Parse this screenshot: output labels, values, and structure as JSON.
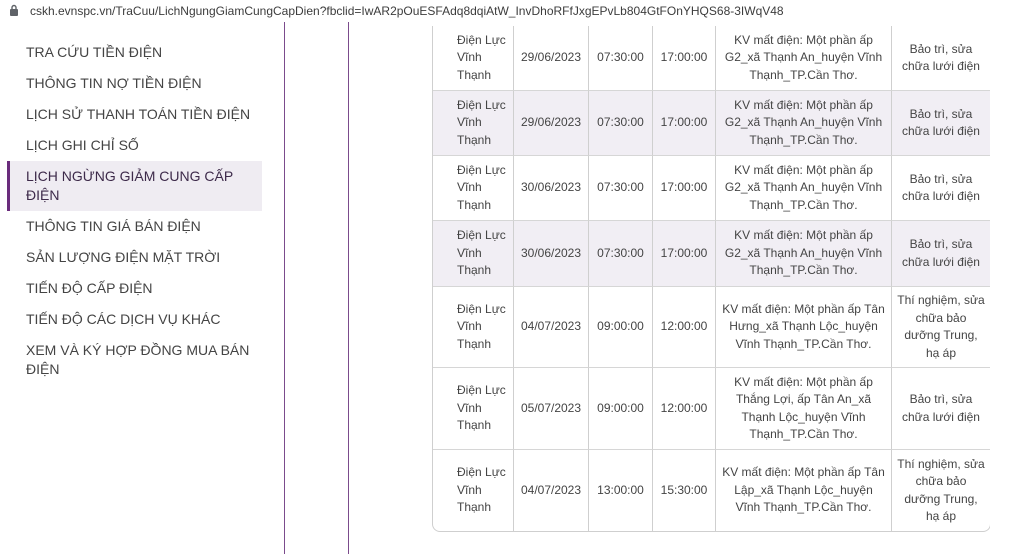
{
  "address_bar": {
    "url": "cskh.evnspc.vn/TraCuu/LichNgungGiamCungCapDien?fbclid=IwAR2pOuESFAdq8dqiAtW_InvDhoRFfJxgEPvLb804GtFOnYHQS68-3IWqV48"
  },
  "menu": [
    "TRA CỨU TIỀN ĐIỆN",
    "THÔNG TIN NỢ TIỀN ĐIỆN",
    "LỊCH SỬ THANH TOÁN TIỀN ĐIỆN",
    "LỊCH GHI CHỈ SỐ",
    "LỊCH NGỪNG GIẢM CUNG CẤP ĐIỆN",
    "THÔNG TIN GIÁ BÁN ĐIỆN",
    "SẢN LƯỢNG ĐIỆN MẶT TRỜI",
    "TIẾN ĐỘ CẤP ĐIỆN",
    "TIẾN ĐỘ CÁC DỊCH VỤ KHÁC",
    "XEM VÀ KÝ HỢP ĐỒNG MUA BÁN ĐIỆN"
  ],
  "table": {
    "rows": [
      [
        "Điện Lực Vĩnh Thạnh",
        "29/06/2023",
        "07:30:00",
        "17:00:00",
        "KV mất điện: Một phần ấp G2_xã Thạnh An_huyện Vĩnh Thạnh_TP.Cần Thơ.",
        "Bảo trì, sửa chữa lưới điện"
      ],
      [
        "Điện Lực Vĩnh Thạnh",
        "29/06/2023",
        "07:30:00",
        "17:00:00",
        "KV mất điện: Một phần ấp G2_xã Thạnh An_huyện Vĩnh Thạnh_TP.Cần Thơ.",
        "Bảo trì, sửa chữa lưới điện"
      ],
      [
        "Điện Lực Vĩnh Thạnh",
        "30/06/2023",
        "07:30:00",
        "17:00:00",
        "KV mất điện: Một phần ấp G2_xã Thạnh An_huyện Vĩnh Thạnh_TP.Cần Thơ.",
        "Bảo trì, sửa chữa lưới điện"
      ],
      [
        "Điện Lực Vĩnh Thạnh",
        "30/06/2023",
        "07:30:00",
        "17:00:00",
        "KV mất điện: Một phần ấp G2_xã Thạnh An_huyện Vĩnh Thạnh_TP.Cần Thơ.",
        "Bảo trì, sửa chữa lưới điện"
      ],
      [
        "Điện Lực Vĩnh Thạnh",
        "04/07/2023",
        "09:00:00",
        "12:00:00",
        "KV mất điện: Một phần ấp Tân Hưng_xã Thạnh Lộc_huyện Vĩnh Thạnh_TP.Cần Thơ.",
        "Thí nghiệm, sửa chữa bảo dưỡng Trung, hạ áp"
      ],
      [
        "Điện Lực Vĩnh Thạnh",
        "05/07/2023",
        "09:00:00",
        "12:00:00",
        "KV mất điện: Một phần ấp Thắng Lợi, ấp Tân An_xã Thạnh Lộc_huyện Vĩnh Thạnh_TP.Cần Thơ.",
        "Bảo trì, sửa chữa lưới điện"
      ],
      [
        "Điện Lực Vĩnh Thạnh",
        "04/07/2023",
        "13:00:00",
        "15:30:00",
        "KV mất điện: Một phần ấp Tân Lập_xã Thạnh Lộc_huyện Vĩnh Thạnh_TP.Cần Thơ.",
        "Thí nghiệm, sửa chữa bảo dưỡng Trung, hạ áp"
      ]
    ]
  }
}
